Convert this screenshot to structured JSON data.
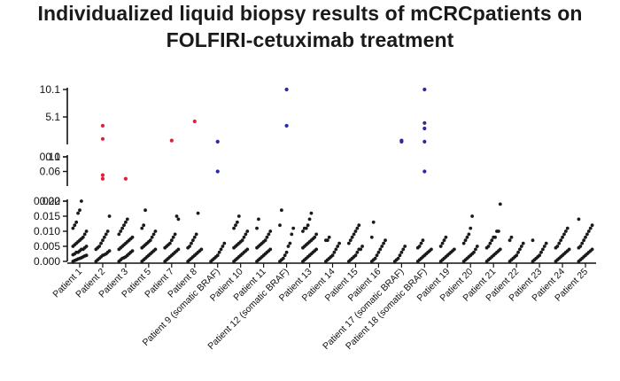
{
  "chart_data": {
    "type": "scatter",
    "title_lines": [
      "Individualized liquid biopsy results of mCRCpatients on",
      "FOLFIRI-cetuximab treatment"
    ],
    "categories": [
      "Patient 1",
      "Patient 2",
      "Patient 3",
      "Patient 5",
      "Patient 7",
      "Patient 8",
      "Patient 9 (somatic BRAF)",
      "Patient 10",
      "Patient 11",
      "Patient 12 (somatic BRAF)",
      "Patient 13",
      "Patient 14",
      "Patient 15",
      "Patient 16",
      "Patient 17 (somatic BRAF)",
      "Patient 18 (somatic BRAF)",
      "Patient 19",
      "Patient 20",
      "Patient 21",
      "Patient 22",
      "Patient 23",
      "Patient 24",
      "Patient 25"
    ],
    "y_axis_segments": [
      {
        "range": [
          0,
          0.02
        ],
        "ticks": [
          "0.000",
          "0.005",
          "0.010",
          "0.015",
          "0.020"
        ],
        "tick_values": [
          0,
          0.005,
          0.01,
          0.015,
          0.02
        ]
      },
      {
        "range": [
          0.02,
          0.1
        ],
        "ticks": [
          "0.02",
          "0.06",
          "0.10"
        ],
        "tick_values": [
          0.02,
          0.06,
          0.1
        ]
      },
      {
        "range": [
          0.1,
          10.1
        ],
        "ticks": [
          "0.1",
          "5.1",
          "10.1"
        ],
        "tick_values": [
          0.1,
          5.1,
          10.1
        ]
      }
    ],
    "colors": {
      "baseline": "#1a1a1a",
      "red": "#e0203a",
      "blue": "#2a2a9a"
    },
    "series": [
      {
        "color": "baseline",
        "values": [
          [
            0.0,
            0.0003,
            0.0005,
            0.0008,
            0.001,
            0.0012,
            0.0015,
            0.0018,
            0.002,
            0.0022,
            0.0025,
            0.003,
            0.003,
            0.0035,
            0.004,
            0.004,
            0.0045,
            0.005,
            0.005,
            0.0055,
            0.006,
            0.0065,
            0.007,
            0.0075,
            0.008,
            0.009,
            0.01,
            0.011,
            0.012,
            0.013,
            0.016,
            0.017,
            0.02
          ],
          [
            0.0,
            0.0005,
            0.001,
            0.0015,
            0.002,
            0.0022,
            0.0025,
            0.003,
            0.0035,
            0.004,
            0.0045,
            0.005,
            0.006,
            0.007,
            0.008,
            0.009,
            0.01,
            0.015
          ],
          [
            0.0,
            0.0005,
            0.001,
            0.0012,
            0.0015,
            0.002,
            0.0025,
            0.003,
            0.0035,
            0.004,
            0.0045,
            0.005,
            0.0055,
            0.006,
            0.0065,
            0.007,
            0.0075,
            0.008,
            0.009,
            0.01,
            0.011,
            0.012,
            0.013,
            0.014
          ],
          [
            0.0,
            0.0005,
            0.001,
            0.0015,
            0.002,
            0.0025,
            0.003,
            0.0035,
            0.004,
            0.0045,
            0.005,
            0.0055,
            0.006,
            0.0065,
            0.007,
            0.008,
            0.009,
            0.01,
            0.011,
            0.012,
            0.017
          ],
          [
            0.0,
            0.0005,
            0.001,
            0.0015,
            0.002,
            0.0025,
            0.003,
            0.0035,
            0.004,
            0.0045,
            0.005,
            0.0055,
            0.006,
            0.007,
            0.008,
            0.009,
            0.015,
            0.014
          ],
          [
            0.0,
            0.0005,
            0.001,
            0.0015,
            0.002,
            0.0025,
            0.003,
            0.0035,
            0.004,
            0.0045,
            0.005,
            0.006,
            0.007,
            0.008,
            0.009,
            0.016
          ],
          [
            0.0,
            0.0005,
            0.001,
            0.0015,
            0.002,
            0.003,
            0.004,
            0.005,
            0.006
          ],
          [
            0.0,
            0.0005,
            0.001,
            0.0015,
            0.002,
            0.0025,
            0.003,
            0.0035,
            0.004,
            0.0045,
            0.005,
            0.0055,
            0.006,
            0.0065,
            0.007,
            0.008,
            0.009,
            0.01,
            0.011,
            0.012,
            0.013,
            0.015
          ],
          [
            0.0,
            0.0005,
            0.001,
            0.0015,
            0.002,
            0.0025,
            0.003,
            0.0035,
            0.004,
            0.0045,
            0.005,
            0.0055,
            0.006,
            0.0065,
            0.007,
            0.008,
            0.009,
            0.01,
            0.011,
            0.014
          ],
          [
            0.0,
            0.0005,
            0.001,
            0.002,
            0.003,
            0.005,
            0.006,
            0.009,
            0.011,
            0.012,
            0.017
          ],
          [
            0.0,
            0.0005,
            0.001,
            0.0015,
            0.002,
            0.0025,
            0.003,
            0.0035,
            0.004,
            0.0045,
            0.005,
            0.0055,
            0.006,
            0.0065,
            0.007,
            0.0075,
            0.008,
            0.009,
            0.01,
            0.011,
            0.011,
            0.012,
            0.014,
            0.016
          ],
          [
            0.0,
            0.0005,
            0.001,
            0.0015,
            0.002,
            0.003,
            0.004,
            0.005,
            0.006,
            0.007,
            0.007,
            0.008
          ],
          [
            0.0,
            0.0005,
            0.001,
            0.0015,
            0.002,
            0.003,
            0.004,
            0.004,
            0.005,
            0.006,
            0.007,
            0.008,
            0.009,
            0.01,
            0.011,
            0.012
          ],
          [
            0.0,
            0.0005,
            0.001,
            0.002,
            0.003,
            0.004,
            0.005,
            0.006,
            0.007,
            0.008,
            0.013
          ],
          [
            0.0,
            0.0005,
            0.001,
            0.002,
            0.003,
            0.004,
            0.005
          ],
          [
            0.0,
            0.0005,
            0.001,
            0.0015,
            0.002,
            0.0025,
            0.003,
            0.0035,
            0.004,
            0.0045,
            0.005,
            0.006,
            0.007
          ],
          [
            0.0,
            0.0005,
            0.001,
            0.0015,
            0.002,
            0.0025,
            0.003,
            0.0035,
            0.004,
            0.005,
            0.006,
            0.007,
            0.008
          ],
          [
            0.0,
            0.0005,
            0.001,
            0.0015,
            0.002,
            0.0025,
            0.003,
            0.004,
            0.005,
            0.006,
            0.007,
            0.008,
            0.009,
            0.011,
            0.015
          ],
          [
            0.0,
            0.0005,
            0.001,
            0.0015,
            0.002,
            0.0025,
            0.003,
            0.0035,
            0.004,
            0.0045,
            0.005,
            0.006,
            0.007,
            0.008,
            0.008,
            0.01,
            0.01,
            0.019
          ],
          [
            0.0,
            0.0005,
            0.001,
            0.0015,
            0.002,
            0.003,
            0.004,
            0.005,
            0.006,
            0.007,
            0.008
          ],
          [
            0.0,
            0.0005,
            0.001,
            0.0015,
            0.002,
            0.003,
            0.004,
            0.005,
            0.006,
            0.007
          ],
          [
            0.0,
            0.0005,
            0.001,
            0.0015,
            0.002,
            0.0025,
            0.003,
            0.0035,
            0.004,
            0.0045,
            0.005,
            0.006,
            0.007,
            0.008,
            0.009,
            0.01,
            0.011
          ],
          [
            0.0,
            0.0005,
            0.001,
            0.0015,
            0.002,
            0.0025,
            0.003,
            0.0035,
            0.004,
            0.0045,
            0.005,
            0.006,
            0.007,
            0.008,
            0.009,
            0.01,
            0.011,
            0.012,
            0.014
          ]
        ]
      },
      {
        "color": "red",
        "points": [
          {
            "category": "Patient 2",
            "y": 0.04
          },
          {
            "category": "Patient 2",
            "y": 0.05
          },
          {
            "category": "Patient 2",
            "y": 1.1
          },
          {
            "category": "Patient 2",
            "y": 3.5
          },
          {
            "category": "Patient 3",
            "y": 0.04
          },
          {
            "category": "Patient 7",
            "y": 0.8
          },
          {
            "category": "Patient 8",
            "y": 4.3
          }
        ]
      },
      {
        "color": "blue",
        "points": [
          {
            "category": "Patient 9 (somatic BRAF)",
            "y": 0.06
          },
          {
            "category": "Patient 9 (somatic BRAF)",
            "y": 0.6
          },
          {
            "category": "Patient 12 (somatic BRAF)",
            "y": 3.5
          },
          {
            "category": "Patient 12 (somatic BRAF)",
            "y": 10.5
          },
          {
            "category": "Patient 17 (somatic BRAF)",
            "y": 0.8
          },
          {
            "category": "Patient 17 (somatic BRAF)",
            "y": 0.6
          },
          {
            "category": "Patient 18 (somatic BRAF)",
            "y": 0.06
          },
          {
            "category": "Patient 18 (somatic BRAF)",
            "y": 0.6
          },
          {
            "category": "Patient 18 (somatic BRAF)",
            "y": 3.0
          },
          {
            "category": "Patient 18 (somatic BRAF)",
            "y": 4.0
          },
          {
            "category": "Patient 18 (somatic BRAF)",
            "y": 10.5
          }
        ]
      }
    ],
    "grid": false,
    "legend": "none"
  }
}
